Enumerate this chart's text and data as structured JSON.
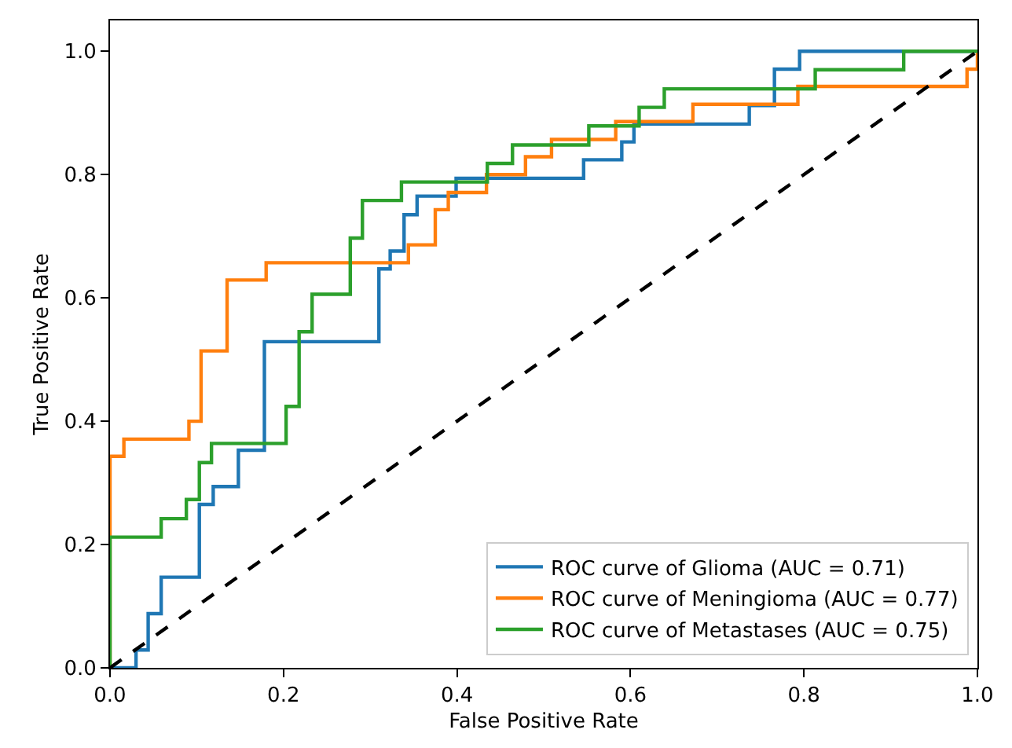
{
  "chart_data": {
    "type": "line",
    "xlabel": "False Positive Rate",
    "ylabel": "True Positive Rate",
    "xlim": [
      0,
      1
    ],
    "ylim": [
      0,
      1.05
    ],
    "xticks": [
      {
        "value": 0,
        "label": "0.0"
      },
      0.2,
      0.4,
      0.6,
      0.8,
      {
        "value": 1,
        "label": "1.0"
      }
    ],
    "yticks": [
      {
        "value": 0,
        "label": "0.0"
      },
      0.2,
      0.4,
      0.6,
      0.8,
      {
        "value": 1,
        "label": "1.0"
      }
    ],
    "legend": "bottom right",
    "series": [
      {
        "name": "ROC curve of Glioma (AUC = 0.71)",
        "color": "#1f77b4",
        "line_style": "solid",
        "x": [
          0,
          0.03,
          0.03,
          0.044,
          0.044,
          0.059,
          0.059,
          0.103,
          0.103,
          0.119,
          0.119,
          0.148,
          0.148,
          0.178,
          0.178,
          0.31,
          0.31,
          0.323,
          0.323,
          0.339,
          0.339,
          0.354,
          0.354,
          0.399,
          0.399,
          0.546,
          0.546,
          0.59,
          0.59,
          0.604,
          0.604,
          0.737,
          0.737,
          0.766,
          0.766,
          0.795,
          0.795,
          1
        ],
        "values": [
          0,
          0,
          0.029,
          0.029,
          0.088,
          0.088,
          0.147,
          0.147,
          0.265,
          0.265,
          0.294,
          0.294,
          0.353,
          0.353,
          0.529,
          0.529,
          0.647,
          0.647,
          0.676,
          0.676,
          0.735,
          0.735,
          0.765,
          0.765,
          0.794,
          0.794,
          0.824,
          0.824,
          0.853,
          0.853,
          0.882,
          0.882,
          0.912,
          0.912,
          0.971,
          0.971,
          1,
          1
        ]
      },
      {
        "name": "ROC curve of Meningioma (AUC = 0.77)",
        "color": "#ff7f0e",
        "line_style": "solid",
        "x": [
          0,
          0,
          0.016,
          0.016,
          0.091,
          0.091,
          0.105,
          0.105,
          0.135,
          0.135,
          0.18,
          0.18,
          0.344,
          0.344,
          0.375,
          0.375,
          0.39,
          0.39,
          0.434,
          0.434,
          0.479,
          0.479,
          0.509,
          0.509,
          0.583,
          0.583,
          0.672,
          0.672,
          0.793,
          0.793,
          0.988,
          0.988,
          1,
          1
        ],
        "values": [
          0,
          0.343,
          0.343,
          0.371,
          0.371,
          0.4,
          0.4,
          0.514,
          0.514,
          0.629,
          0.629,
          0.657,
          0.657,
          0.686,
          0.686,
          0.743,
          0.743,
          0.771,
          0.771,
          0.8,
          0.8,
          0.829,
          0.829,
          0.857,
          0.857,
          0.886,
          0.886,
          0.914,
          0.914,
          0.943,
          0.943,
          0.971,
          0.971,
          1
        ]
      },
      {
        "name": "ROC curve of Metastases (AUC = 0.75)",
        "color": "#2ca02c",
        "line_style": "solid",
        "x": [
          0,
          0,
          0.059,
          0.059,
          0.088,
          0.088,
          0.103,
          0.103,
          0.117,
          0.117,
          0.203,
          0.203,
          0.218,
          0.218,
          0.233,
          0.233,
          0.277,
          0.277,
          0.291,
          0.291,
          0.336,
          0.336,
          0.435,
          0.435,
          0.464,
          0.464,
          0.552,
          0.552,
          0.61,
          0.61,
          0.639,
          0.639,
          0.813,
          0.813,
          0.915,
          0.915,
          1
        ],
        "values": [
          0,
          0.212,
          0.212,
          0.242,
          0.242,
          0.273,
          0.273,
          0.333,
          0.333,
          0.364,
          0.364,
          0.424,
          0.424,
          0.545,
          0.545,
          0.606,
          0.606,
          0.697,
          0.697,
          0.758,
          0.758,
          0.788,
          0.788,
          0.818,
          0.818,
          0.848,
          0.848,
          0.879,
          0.879,
          0.909,
          0.909,
          0.939,
          0.939,
          0.97,
          0.97,
          1,
          1
        ]
      },
      {
        "color": "#000000",
        "line_style": "dashed",
        "x": [
          0,
          1
        ],
        "values": [
          0,
          1
        ]
      }
    ]
  }
}
